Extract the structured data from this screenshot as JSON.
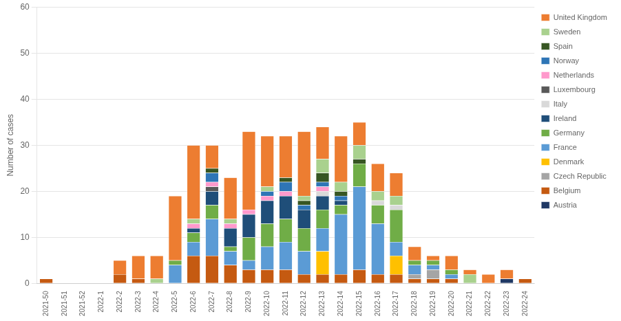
{
  "chart_data": {
    "type": "bar",
    "stacked": true,
    "grid": true,
    "legend": "right",
    "ylabel": "Number of cases",
    "ylim": [
      0,
      60
    ],
    "yticks": [
      0,
      10,
      20,
      30,
      40,
      50,
      60
    ],
    "categories": [
      "2021-50",
      "2021-51",
      "2021-52",
      "2022-1",
      "2022-2",
      "2022-3",
      "2022-4",
      "2022-5",
      "2022-6",
      "2022-7",
      "2022-8",
      "2022-9",
      "2022-10",
      "2022-11",
      "2022-12",
      "2022-13",
      "2022-14",
      "2022-15",
      "2022-16",
      "2022-17",
      "2022-18",
      "2022-19",
      "2022-20",
      "2022-21",
      "2022-22",
      "2022-23",
      "2022-24"
    ],
    "series": [
      {
        "name": "Austria",
        "color": "#1f3864",
        "values": [
          0,
          0,
          0,
          0,
          0,
          0,
          0,
          0,
          0,
          0,
          0,
          0,
          0,
          0,
          0,
          0,
          0,
          0,
          0,
          0,
          0,
          0,
          0,
          0,
          0,
          1,
          0
        ]
      },
      {
        "name": "Belgium",
        "color": "#c55a11",
        "values": [
          1,
          0,
          0,
          0,
          2,
          1,
          0,
          0,
          6,
          6,
          4,
          3,
          3,
          3,
          2,
          2,
          2,
          3,
          2,
          2,
          1,
          1,
          1,
          0,
          0,
          0,
          1
        ]
      },
      {
        "name": "Czech Republic",
        "color": "#a5a5a5",
        "values": [
          0,
          0,
          0,
          0,
          0,
          0,
          0,
          0,
          0,
          0,
          0,
          0,
          0,
          0,
          0,
          0,
          0,
          0,
          0,
          0,
          1,
          2,
          0,
          0,
          0,
          0,
          0
        ]
      },
      {
        "name": "Denmark",
        "color": "#ffc000",
        "values": [
          0,
          0,
          0,
          0,
          0,
          0,
          0,
          0,
          0,
          0,
          0,
          0,
          0,
          0,
          0,
          5,
          0,
          0,
          0,
          4,
          0,
          0,
          0,
          0,
          0,
          0,
          0
        ]
      },
      {
        "name": "France",
        "color": "#5b9bd5",
        "values": [
          0,
          0,
          0,
          0,
          0,
          0,
          0,
          4,
          3,
          8,
          3,
          2,
          5,
          6,
          5,
          5,
          13,
          18,
          11,
          3,
          2,
          1,
          1,
          0,
          0,
          0,
          0
        ]
      },
      {
        "name": "Germany",
        "color": "#70ad47",
        "values": [
          0,
          0,
          0,
          0,
          0,
          0,
          0,
          1,
          2,
          3,
          1,
          5,
          5,
          5,
          5,
          4,
          2,
          5,
          4,
          7,
          1,
          1,
          1,
          0,
          0,
          0,
          0
        ]
      },
      {
        "name": "Ireland",
        "color": "#1f4e79",
        "values": [
          0,
          0,
          0,
          0,
          0,
          0,
          0,
          0,
          1,
          3,
          4,
          5,
          5,
          5,
          4,
          3,
          1,
          0,
          0,
          0,
          0,
          0,
          0,
          0,
          0,
          0,
          0
        ]
      },
      {
        "name": "Italy",
        "color": "#d9d9d9",
        "values": [
          0,
          0,
          0,
          0,
          0,
          0,
          0,
          0,
          0,
          0,
          0,
          0,
          0,
          0,
          0,
          1,
          0,
          0,
          1,
          1,
          0,
          0,
          0,
          0,
          0,
          0,
          0
        ]
      },
      {
        "name": "Luxembourg",
        "color": "#595959",
        "values": [
          0,
          0,
          0,
          0,
          0,
          0,
          0,
          0,
          0,
          1,
          0,
          0,
          0,
          0,
          0,
          0,
          0,
          0,
          0,
          0,
          0,
          0,
          0,
          0,
          0,
          0,
          0
        ]
      },
      {
        "name": "Netherlands",
        "color": "#ff99cc",
        "values": [
          0,
          0,
          0,
          0,
          0,
          0,
          0,
          0,
          1,
          1,
          1,
          1,
          1,
          1,
          0,
          1,
          0,
          0,
          0,
          0,
          0,
          0,
          0,
          0,
          0,
          0,
          0
        ]
      },
      {
        "name": "Norway",
        "color": "#2e75b6",
        "values": [
          0,
          0,
          0,
          0,
          0,
          0,
          0,
          0,
          0,
          2,
          0,
          0,
          1,
          2,
          1,
          1,
          1,
          0,
          0,
          0,
          0,
          0,
          0,
          0,
          0,
          0,
          0
        ]
      },
      {
        "name": "Spain",
        "color": "#375623",
        "values": [
          0,
          0,
          0,
          0,
          0,
          0,
          0,
          0,
          0,
          1,
          0,
          0,
          0,
          1,
          1,
          2,
          1,
          1,
          0,
          0,
          0,
          0,
          0,
          0,
          0,
          0,
          0
        ]
      },
      {
        "name": "Sweden",
        "color": "#a9d18e",
        "values": [
          0,
          0,
          0,
          0,
          0,
          0,
          1,
          0,
          1,
          0,
          1,
          0,
          1,
          0,
          1,
          3,
          2,
          3,
          2,
          2,
          0,
          0,
          0,
          2,
          0,
          0,
          0
        ]
      },
      {
        "name": "United Kingdom",
        "color": "#ed7d31",
        "values": [
          0,
          0,
          0,
          0,
          3,
          5,
          5,
          14,
          16,
          5,
          9,
          17,
          11,
          9,
          14,
          7,
          10,
          5,
          6,
          5,
          3,
          1,
          3,
          1,
          2,
          2,
          0
        ]
      }
    ]
  }
}
